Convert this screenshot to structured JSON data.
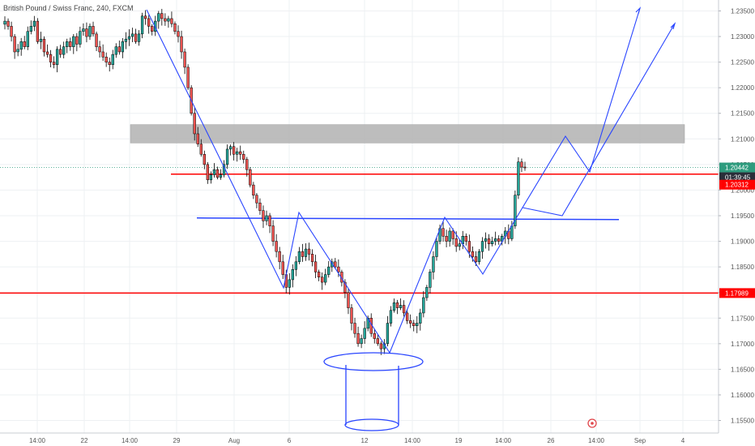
{
  "title": "British Pound / Swiss Franc, 240, FXCM",
  "colors": {
    "bull": "#26a69a",
    "bear": "#ef5350",
    "line_blue": "#2945ff",
    "red_level": "#ff0000",
    "zone_gray": "#b2b2b2",
    "current_tag": "#2e9c7e",
    "countdown_tag": "#2a2e39"
  },
  "chart_data": {
    "type": "candlestick",
    "symbol": "GBP/CHF",
    "timeframe": "240",
    "y_ticks": [
      "1.23500",
      "1.23000",
      "1.22500",
      "1.22000",
      "1.21500",
      "1.21000",
      "1.20500",
      "1.20000",
      "1.19500",
      "1.19000",
      "1.18500",
      "1.18000",
      "1.17500",
      "1.17000",
      "1.16500",
      "1.16000",
      "1.15500"
    ],
    "x_ticks": [
      "14:00",
      "22",
      "14:00",
      "29",
      "Aug",
      "6",
      "12",
      "14:00",
      "19",
      "14:00",
      "26",
      "14:00",
      "Sep",
      "4"
    ],
    "ylim": [
      1.1535,
      1.2365
    ],
    "closes": [
      1.233,
      1.232,
      1.23,
      1.227,
      1.2275,
      1.229,
      1.228,
      1.231,
      1.232,
      1.233,
      1.229,
      1.2295,
      1.227,
      1.2265,
      1.225,
      1.2245,
      1.2275,
      1.2265,
      1.228,
      1.229,
      1.228,
      1.23,
      1.2285,
      1.231,
      1.2315,
      1.23,
      1.232,
      1.2305,
      1.228,
      1.227,
      1.226,
      1.225,
      1.2245,
      1.2265,
      1.228,
      1.227,
      1.229,
      1.2295,
      1.23,
      1.2305,
      1.229,
      1.2305,
      1.234,
      1.2335,
      1.232,
      1.231,
      1.233,
      1.2345,
      1.2335,
      1.233,
      1.2335,
      1.2325,
      1.231,
      1.23,
      1.227,
      1.224,
      1.22,
      1.215,
      1.211,
      1.209,
      1.207,
      1.205,
      1.202,
      1.203,
      1.204,
      1.2025,
      1.203,
      1.205,
      1.208,
      1.2085,
      1.207,
      1.2075,
      1.207,
      1.206,
      1.204,
      1.201,
      1.199,
      1.1975,
      1.196,
      1.194,
      1.195,
      1.193,
      1.19,
      1.188,
      1.186,
      1.1835,
      1.181,
      1.1825,
      1.1845,
      1.186,
      1.188,
      1.187,
      1.1885,
      1.1875,
      1.186,
      1.184,
      1.183,
      1.182,
      1.1835,
      1.185,
      1.186,
      1.185,
      1.184,
      1.182,
      1.18,
      1.177,
      1.174,
      1.172,
      1.17,
      1.171,
      1.173,
      1.175,
      1.172,
      1.171,
      1.17,
      1.169,
      1.17,
      1.174,
      1.1765,
      1.178,
      1.177,
      1.1775,
      1.176,
      1.1745,
      1.174,
      1.1735,
      1.174,
      1.176,
      1.179,
      1.181,
      1.184,
      1.187,
      1.19,
      1.1925,
      1.191,
      1.19,
      1.192,
      1.1905,
      1.189,
      1.1895,
      1.191,
      1.19,
      1.188,
      1.187,
      1.186,
      1.188,
      1.19,
      1.1905,
      1.1895,
      1.19,
      1.1905,
      1.19,
      1.191,
      1.192,
      1.1905,
      1.193,
      1.199,
      1.2055,
      1.2045,
      1.2044
    ],
    "levels": [
      {
        "price_label": "1.20312"
      },
      {
        "price_label": "1.17989"
      }
    ],
    "resistance_zone": [
      1.2092,
      1.2128
    ],
    "neckline": 1.1944,
    "current_price": "1.20442",
    "countdown": "01:39:45"
  }
}
